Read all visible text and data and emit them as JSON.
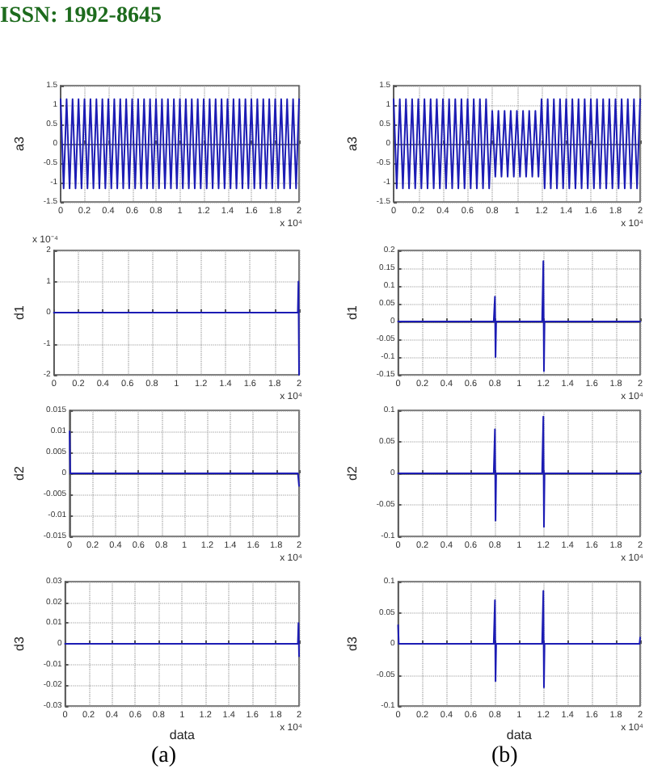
{
  "chart_data": [
    {
      "type": "line",
      "ylabel": "a3",
      "annotations": [
        "x 10⁴",
        "ISSN: 1992-8645"
      ],
      "color": "#1c1cb4",
      "grid": true,
      "xlim": [
        0,
        2
      ],
      "xticks": [
        0,
        0.2,
        0.4,
        0.6,
        0.8,
        1,
        1.2,
        1.4,
        1.6,
        1.8,
        2
      ],
      "ylim": [
        -1.5,
        1.5
      ],
      "yticks": [
        -1.5,
        -1,
        -0.5,
        0,
        0.5,
        1,
        1.5
      ],
      "x": [
        0,
        0.025,
        0.05,
        0.075,
        0.1,
        0.125,
        0.15,
        0.175,
        0.2,
        0.225,
        0.25,
        0.275,
        0.3,
        0.325,
        0.35,
        0.375,
        0.4,
        0.425,
        0.45,
        0.475,
        0.5,
        0.525,
        0.55,
        0.575,
        0.6,
        0.625,
        0.65,
        0.675,
        0.7,
        0.725,
        0.75,
        0.775,
        0.8,
        0.825,
        0.85,
        0.875,
        0.9,
        0.925,
        0.95,
        0.975,
        1,
        1.025,
        1.05,
        1.075,
        1.1,
        1.125,
        1.15,
        1.175,
        1.2,
        1.225,
        1.25,
        1.275,
        1.3,
        1.325,
        1.35,
        1.375,
        1.4,
        1.425,
        1.45,
        1.475,
        1.5,
        1.525,
        1.55,
        1.575,
        1.6,
        1.625,
        1.65,
        1.675,
        1.7,
        1.725,
        1.75,
        1.775,
        1.8,
        1.825,
        1.85,
        1.875,
        1.9,
        1.925,
        1.95,
        1.975,
        2
      ],
      "values": [
        1.15,
        -1.15,
        1.15,
        -1.15,
        1.15,
        -1.15,
        1.15,
        -1.15,
        1.15,
        -1.15,
        1.15,
        -1.15,
        1.15,
        -1.15,
        1.15,
        -1.15,
        1.15,
        -1.15,
        1.15,
        -1.15,
        1.15,
        -1.15,
        1.15,
        -1.15,
        1.15,
        -1.15,
        1.15,
        -1.15,
        1.15,
        -1.15,
        1.15,
        -1.15,
        1.15,
        -1.15,
        1.15,
        -1.15,
        1.15,
        -1.15,
        1.15,
        -1.15,
        1.15,
        -1.15,
        1.15,
        -1.15,
        1.15,
        -1.15,
        1.15,
        -1.15,
        1.15,
        -1.15,
        1.15,
        -1.15,
        1.15,
        -1.15,
        1.15,
        -1.15,
        1.15,
        -1.15,
        1.15,
        -1.15,
        1.15,
        -1.15,
        1.15,
        -1.15,
        1.15,
        -1.15,
        1.15,
        -1.15,
        1.15,
        -1.15,
        1.15,
        -1.15,
        1.15,
        -1.15,
        1.15,
        -1.15,
        1.15,
        -1.15,
        1.15,
        -1.15,
        1.15
      ]
    },
    {
      "type": "line",
      "ylabel": "a3",
      "annotations": [
        "x 10⁴"
      ],
      "color": "#1c1cb4",
      "grid": true,
      "xlim": [
        0,
        2
      ],
      "xticks": [
        0,
        0.2,
        0.4,
        0.6,
        0.8,
        1,
        1.2,
        1.4,
        1.6,
        1.8,
        2
      ],
      "ylim": [
        -1.5,
        1.5
      ],
      "yticks": [
        -1.5,
        -1,
        -0.5,
        0,
        0.5,
        1,
        1.5
      ],
      "x": [
        0,
        0.025,
        0.05,
        0.075,
        0.1,
        0.125,
        0.15,
        0.175,
        0.2,
        0.225,
        0.25,
        0.275,
        0.3,
        0.325,
        0.35,
        0.375,
        0.4,
        0.425,
        0.45,
        0.475,
        0.5,
        0.525,
        0.55,
        0.575,
        0.6,
        0.625,
        0.65,
        0.675,
        0.7,
        0.725,
        0.75,
        0.775,
        0.8,
        0.825,
        0.85,
        0.875,
        0.9,
        0.925,
        0.95,
        0.975,
        1,
        1.025,
        1.05,
        1.075,
        1.1,
        1.125,
        1.15,
        1.175,
        1.2,
        1.225,
        1.25,
        1.275,
        1.3,
        1.325,
        1.35,
        1.375,
        1.4,
        1.425,
        1.45,
        1.475,
        1.5,
        1.525,
        1.55,
        1.575,
        1.6,
        1.625,
        1.65,
        1.675,
        1.7,
        1.725,
        1.75,
        1.775,
        1.8,
        1.825,
        1.85,
        1.875,
        1.9,
        1.925,
        1.95,
        1.975,
        2
      ],
      "values": [
        1.15,
        -1.15,
        1.15,
        -1.15,
        1.15,
        -1.15,
        1.15,
        -1.15,
        1.15,
        -1.15,
        1.15,
        -1.15,
        1.15,
        -1.15,
        1.15,
        -1.15,
        1.15,
        -1.15,
        1.15,
        -1.15,
        1.15,
        -1.15,
        1.15,
        -1.15,
        1.15,
        -1.15,
        1.15,
        -1.15,
        1.15,
        -1.15,
        1.15,
        -1.15,
        0.85,
        -0.85,
        0.85,
        -0.85,
        0.85,
        -0.85,
        0.85,
        -0.85,
        0.85,
        -0.85,
        0.85,
        -0.85,
        0.85,
        -0.85,
        0.85,
        -0.85,
        1.15,
        -1.15,
        1.15,
        -1.15,
        1.15,
        -1.15,
        1.15,
        -1.15,
        1.15,
        -1.15,
        1.15,
        -1.15,
        1.15,
        -1.15,
        1.15,
        -1.15,
        1.15,
        -1.15,
        1.15,
        -1.15,
        1.15,
        -1.15,
        1.15,
        -1.15,
        1.15,
        -1.15,
        1.15,
        -1.15,
        1.15,
        -1.15,
        1.15,
        -1.15,
        1.15
      ]
    },
    {
      "type": "line",
      "ylabel": "d1",
      "annotations": [
        "x 10⁴",
        "x 10⁻⁴"
      ],
      "color": "#1c1cb4",
      "grid": true,
      "xlim": [
        0,
        2
      ],
      "xticks": [
        0,
        0.2,
        0.4,
        0.6,
        0.8,
        1,
        1.2,
        1.4,
        1.6,
        1.8,
        2
      ],
      "ylim": [
        -2,
        2
      ],
      "yticks": [
        -2,
        -1,
        0,
        1,
        2
      ],
      "x": [
        0,
        1.99,
        1.995,
        2
      ],
      "values": [
        0,
        0,
        1,
        -2
      ]
    },
    {
      "type": "line",
      "ylabel": "d1",
      "annotations": [
        "x 10⁴"
      ],
      "color": "#1c1cb4",
      "grid": true,
      "xlim": [
        0,
        2
      ],
      "xticks": [
        0,
        0.2,
        0.4,
        0.6,
        0.8,
        1,
        1.2,
        1.4,
        1.6,
        1.8,
        2
      ],
      "ylim": [
        -0.15,
        0.2
      ],
      "yticks": [
        -0.15,
        -0.1,
        -0.05,
        0,
        0.05,
        0.1,
        0.15,
        0.2
      ],
      "x": [
        0,
        0.79,
        0.8,
        0.805,
        0.81,
        1.19,
        1.2,
        1.205,
        1.21,
        2
      ],
      "values": [
        0,
        0,
        0.07,
        -0.1,
        0,
        0,
        0.17,
        -0.14,
        0,
        0
      ]
    },
    {
      "type": "line",
      "ylabel": "d2",
      "annotations": [
        "x 10⁴"
      ],
      "color": "#1c1cb4",
      "grid": true,
      "xlim": [
        0,
        2
      ],
      "xticks": [
        0,
        0.2,
        0.4,
        0.6,
        0.8,
        1,
        1.2,
        1.4,
        1.6,
        1.8,
        2
      ],
      "ylim": [
        -0.015,
        0.015
      ],
      "yticks": [
        -0.015,
        -0.01,
        -0.005,
        0,
        0.005,
        0.01,
        0.015
      ],
      "x": [
        0,
        0.005,
        0.01,
        1.99,
        2
      ],
      "values": [
        0.01,
        0,
        0,
        0,
        -0.003
      ]
    },
    {
      "type": "line",
      "ylabel": "d2",
      "annotations": [
        "x 10⁴"
      ],
      "color": "#1c1cb4",
      "grid": true,
      "xlim": [
        0,
        2
      ],
      "xticks": [
        0,
        0.2,
        0.4,
        0.6,
        0.8,
        1,
        1.2,
        1.4,
        1.6,
        1.8,
        2
      ],
      "ylim": [
        -0.1,
        0.1
      ],
      "yticks": [
        -0.1,
        -0.05,
        0,
        0.05,
        0.1
      ],
      "x": [
        0,
        0.79,
        0.8,
        0.805,
        0.81,
        1.19,
        1.2,
        1.205,
        1.21,
        2
      ],
      "values": [
        0,
        0,
        0.07,
        -0.075,
        0,
        0,
        0.09,
        -0.085,
        0,
        0
      ]
    },
    {
      "type": "line",
      "ylabel": "d3",
      "xlabel": "data",
      "annotations": [
        "x 10⁴",
        "(a)"
      ],
      "color": "#1c1cb4",
      "grid": true,
      "xlim": [
        0,
        2
      ],
      "xticks": [
        0,
        0.2,
        0.4,
        0.6,
        0.8,
        1,
        1.2,
        1.4,
        1.6,
        1.8,
        2
      ],
      "ylim": [
        -0.03,
        0.03
      ],
      "yticks": [
        -0.03,
        -0.02,
        -0.01,
        0,
        0.01,
        0.02,
        0.03
      ],
      "x": [
        0,
        1.99,
        1.995,
        2
      ],
      "values": [
        0,
        0,
        0.01,
        -0.006
      ]
    },
    {
      "type": "line",
      "ylabel": "d3",
      "xlabel": "data",
      "annotations": [
        "x 10⁴",
        "(b)"
      ],
      "color": "#1c1cb4",
      "grid": true,
      "xlim": [
        0,
        2
      ],
      "xticks": [
        0,
        0.2,
        0.4,
        0.6,
        0.8,
        1,
        1.2,
        1.4,
        1.6,
        1.8,
        2
      ],
      "ylim": [
        -0.1,
        0.1
      ],
      "yticks": [
        -0.1,
        -0.05,
        0,
        0.05,
        0.1
      ],
      "x": [
        0,
        0.005,
        0.01,
        0.79,
        0.8,
        0.805,
        0.81,
        1.19,
        1.2,
        1.205,
        1.21,
        1.995,
        2
      ],
      "values": [
        0.03,
        0,
        0,
        0,
        0.07,
        -0.06,
        0,
        0,
        0.085,
        -0.07,
        0,
        0,
        0.01
      ]
    }
  ]
}
